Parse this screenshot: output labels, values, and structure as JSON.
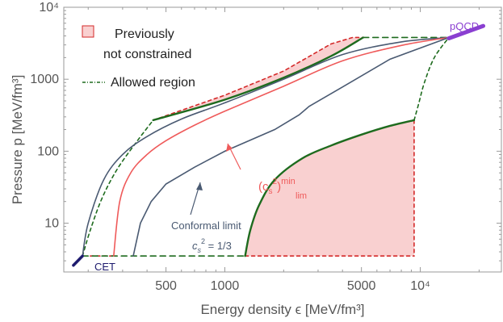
{
  "chart_data": {
    "type": "line",
    "xlabel": "Energy density ϵ [MeV/fm³]",
    "ylabel": "Pressure p [MeV/fm³]",
    "x_scale": "log",
    "y_scale": "log",
    "xlim": [
      150,
      26000
    ],
    "ylim": [
      2.1,
      10000
    ],
    "x_ticks": [
      {
        "value": 500,
        "label": "500"
      },
      {
        "value": 1000,
        "label": "1000"
      },
      {
        "value": 5000,
        "label": "5000"
      },
      {
        "value": 10000,
        "label": "10⁴"
      }
    ],
    "y_ticks": [
      {
        "value": 10,
        "label": "10"
      },
      {
        "value": 100,
        "label": "100"
      },
      {
        "value": 1000,
        "label": "1000"
      },
      {
        "value": 10000,
        "label": "10⁴"
      }
    ],
    "legend": [
      {
        "label_line1": "Previously",
        "label_line2": "not constrained",
        "style": "pink-filled-square"
      },
      {
        "label_line1": "Allowed region",
        "style": "green-dash-dotted"
      }
    ],
    "colors": {
      "allowed_green": "#1e6b1e",
      "boundary_red": "#d42a2a",
      "fill_pink": "#f9d0d0",
      "conformal_blue": "#4a5a72",
      "cs_min_red": "#ef5a5a",
      "pqcd_purple": "#8a3fd1",
      "cet_navy": "#1e1b6e"
    },
    "series": [
      {
        "key": "cet",
        "points": [
          [
            168,
            2.6
          ],
          [
            187,
            3.5
          ]
        ]
      },
      {
        "key": "pqcd",
        "points": [
          [
            14000,
            3700
          ],
          [
            21000,
            5500
          ]
        ]
      },
      {
        "key": "allowed_bottom_left",
        "points": [
          [
            187,
            3.5
          ],
          [
            1270,
            3.5
          ]
        ]
      },
      {
        "key": "allowed_top_right",
        "points": [
          [
            5100,
            3800
          ],
          [
            14000,
            3800
          ]
        ]
      },
      {
        "key": "allowed_left_curve",
        "points": [
          [
            187,
            3.5
          ],
          [
            205,
            8
          ],
          [
            235,
            22
          ],
          [
            280,
            55
          ],
          [
            350,
            130
          ],
          [
            430,
            270
          ]
        ]
      },
      {
        "key": "allowed_right_curve",
        "points": [
          [
            9300,
            270
          ],
          [
            9800,
            450
          ],
          [
            10500,
            900
          ],
          [
            11800,
            2000
          ],
          [
            14000,
            3800
          ]
        ]
      },
      {
        "key": "allowed_upper_line",
        "points": [
          [
            430,
            270
          ],
          [
            1000,
            520
          ],
          [
            2000,
            1050
          ],
          [
            3500,
            2100
          ],
          [
            5100,
            3800
          ]
        ]
      },
      {
        "key": "allowed_lower_curve",
        "points": [
          [
            1270,
            3.5
          ],
          [
            1350,
            8
          ],
          [
            1500,
            18
          ],
          [
            1800,
            40
          ],
          [
            2500,
            80
          ],
          [
            3500,
            120
          ],
          [
            5000,
            170
          ],
          [
            7000,
            225
          ],
          [
            9300,
            270
          ]
        ]
      },
      {
        "key": "red_upper_boundary",
        "points": [
          [
            430,
            270
          ],
          [
            1000,
            600
          ],
          [
            2000,
            1300
          ],
          [
            3500,
            3100
          ],
          [
            4500,
            3800
          ],
          [
            5100,
            3800
          ]
        ]
      },
      {
        "key": "red_right_vertical",
        "points": [
          [
            9300,
            270
          ],
          [
            9300,
            3.5
          ]
        ]
      },
      {
        "key": "red_bottom_right",
        "points": [
          [
            1270,
            3.5
          ],
          [
            9300,
            3.5
          ]
        ]
      },
      {
        "key": "red_bottom_left",
        "points": [
          [
            205,
            3.5
          ],
          [
            270,
            3.5
          ]
        ]
      },
      {
        "key": "cs_min_lim",
        "points": [
          [
            270,
            3.5
          ],
          [
            290,
            20
          ],
          [
            330,
            50
          ],
          [
            400,
            90
          ],
          [
            500,
            140
          ],
          [
            700,
            230
          ],
          [
            1000,
            360
          ],
          [
            2000,
            800
          ],
          [
            4000,
            1800
          ],
          [
            8000,
            2950
          ],
          [
            14000,
            3800
          ]
        ]
      },
      {
        "key": "conformal_limit",
        "points": [
          [
            340,
            3.5
          ],
          [
            370,
            10
          ],
          [
            420,
            20
          ],
          [
            500,
            35
          ],
          [
            700,
            60
          ],
          [
            1000,
            100
          ],
          [
            1800,
            200
          ],
          [
            2400,
            320
          ],
          [
            2700,
            420
          ],
          [
            4000,
            780
          ],
          [
            7000,
            1900
          ],
          [
            14000,
            3800
          ]
        ]
      },
      {
        "key": "stiff_boundary",
        "points": [
          [
            187,
            3.5
          ],
          [
            200,
            10
          ],
          [
            240,
            40
          ],
          [
            300,
            90
          ],
          [
            400,
            160
          ],
          [
            600,
            280
          ],
          [
            1000,
            470
          ],
          [
            2000,
            1000
          ],
          [
            4000,
            2200
          ],
          [
            8000,
            3300
          ],
          [
            14000,
            3800
          ]
        ]
      }
    ],
    "annotations": {
      "cet_label": "CET",
      "pqcd_label": "pQCD",
      "cs_min_label_base": "(c",
      "cs_min_label_sub": "s",
      "cs_min_label_sup": "2",
      "cs_min_label_close": ")",
      "cs_min_label_supmin": "min",
      "cs_min_label_sublim": "lim",
      "conformal_label": "Conformal limit",
      "conformal_eq_c": "c",
      "conformal_eq_sub": "s",
      "conformal_eq_sup": "2",
      "conformal_eq_rest": " = 1/3"
    }
  }
}
